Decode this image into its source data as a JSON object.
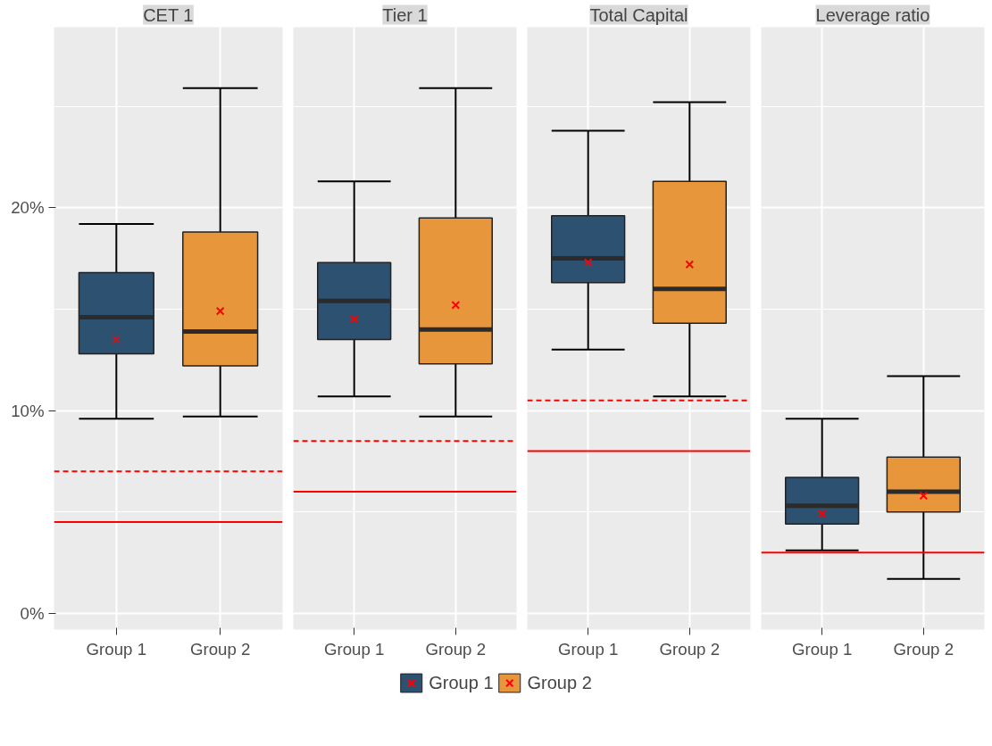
{
  "chart_data": [
    {
      "type": "box",
      "title": "CET 1",
      "categories": [
        "Group 1",
        "Group 2"
      ],
      "ylim": [
        -0.8,
        28.9
      ],
      "yticks": [
        {
          "value": 0,
          "label": "0%"
        },
        {
          "value": 10,
          "label": "10%"
        },
        {
          "value": 20,
          "label": "20%"
        }
      ],
      "grid": true,
      "legend": "bottom",
      "marker": "cross",
      "series": [
        {
          "name": "Group 1",
          "color": "#2d5271",
          "boxes": [
            {
              "low": 9.6,
              "q1": 12.8,
              "median": 14.6,
              "q3": 16.8,
              "high": 19.2,
              "mean": 13.5
            },
            null
          ]
        },
        {
          "name": "Group 2",
          "color": "#e8963c",
          "boxes": [
            null,
            {
              "low": 9.7,
              "q1": 12.2,
              "median": 13.9,
              "q3": 18.8,
              "high": 25.9,
              "mean": 14.9
            }
          ]
        }
      ],
      "ref_lines": [
        {
          "axis": "y",
          "value": 7.0,
          "color": "#ff0000",
          "line_style": "dashed"
        },
        {
          "axis": "y",
          "value": 4.5,
          "color": "#ff0000",
          "line_style": "solid"
        }
      ]
    },
    {
      "type": "box",
      "title": "Tier 1",
      "categories": [
        "Group 1",
        "Group 2"
      ],
      "ylim": [
        -0.8,
        28.9
      ],
      "yticks": [
        0,
        10,
        20
      ],
      "grid": true,
      "tick_labels": "x",
      "marker": "cross",
      "series": [
        {
          "color": "#2d5271",
          "boxes": [
            {
              "low": 10.7,
              "q1": 13.5,
              "median": 15.4,
              "q3": 17.3,
              "high": 21.3,
              "mean": 14.5
            },
            null
          ]
        },
        {
          "color": "#e8963c",
          "boxes": [
            null,
            {
              "low": 9.7,
              "q1": 12.3,
              "median": 14.0,
              "q3": 19.5,
              "high": 25.9,
              "mean": 15.2
            }
          ]
        }
      ],
      "ref_lines": [
        {
          "axis": "y",
          "value": 8.5,
          "color": "#ff0000",
          "line_style": "dashed"
        },
        {
          "axis": "y",
          "value": 6.0,
          "color": "#ff0000",
          "line_style": "solid"
        }
      ]
    },
    {
      "type": "box",
      "title": "Total Capital",
      "categories": [
        "Group 1",
        "Group 2"
      ],
      "ylim": [
        -0.8,
        28.9
      ],
      "yticks": [
        0,
        10,
        20
      ],
      "grid": true,
      "tick_labels": "x",
      "marker": "cross",
      "series": [
        {
          "color": "#2d5271",
          "boxes": [
            {
              "low": 13.0,
              "q1": 16.3,
              "median": 17.5,
              "q3": 19.6,
              "high": 23.8,
              "mean": 17.3
            },
            null
          ]
        },
        {
          "color": "#e8963c",
          "boxes": [
            null,
            {
              "low": 10.7,
              "q1": 14.3,
              "median": 16.0,
              "q3": 21.3,
              "high": 25.2,
              "mean": 17.2
            }
          ]
        }
      ],
      "ref_lines": [
        {
          "axis": "y",
          "value": 10.5,
          "color": "#ff0000",
          "line_style": "dashed"
        },
        {
          "axis": "y",
          "value": 8.0,
          "color": "#ff0000",
          "line_style": "solid"
        }
      ]
    },
    {
      "type": "box",
      "title": "Leverage ratio",
      "categories": [
        "Group 1",
        "Group 2"
      ],
      "ylim": [
        -0.8,
        28.9
      ],
      "yticks": [
        0,
        10,
        20
      ],
      "grid": true,
      "tick_labels": "x",
      "marker": "cross",
      "series": [
        {
          "color": "#2d5271",
          "boxes": [
            {
              "low": 3.1,
              "q1": 4.4,
              "median": 5.3,
              "q3": 6.7,
              "high": 9.6,
              "mean": 4.9
            },
            null
          ]
        },
        {
          "color": "#e8963c",
          "boxes": [
            null,
            {
              "low": 1.7,
              "q1": 5.0,
              "median": 6.0,
              "q3": 7.7,
              "high": 11.7,
              "mean": 5.8
            }
          ]
        }
      ],
      "ref_lines": [
        {
          "axis": "y",
          "value": 3.0,
          "color": "#ff0000",
          "line_style": "solid"
        }
      ]
    }
  ]
}
